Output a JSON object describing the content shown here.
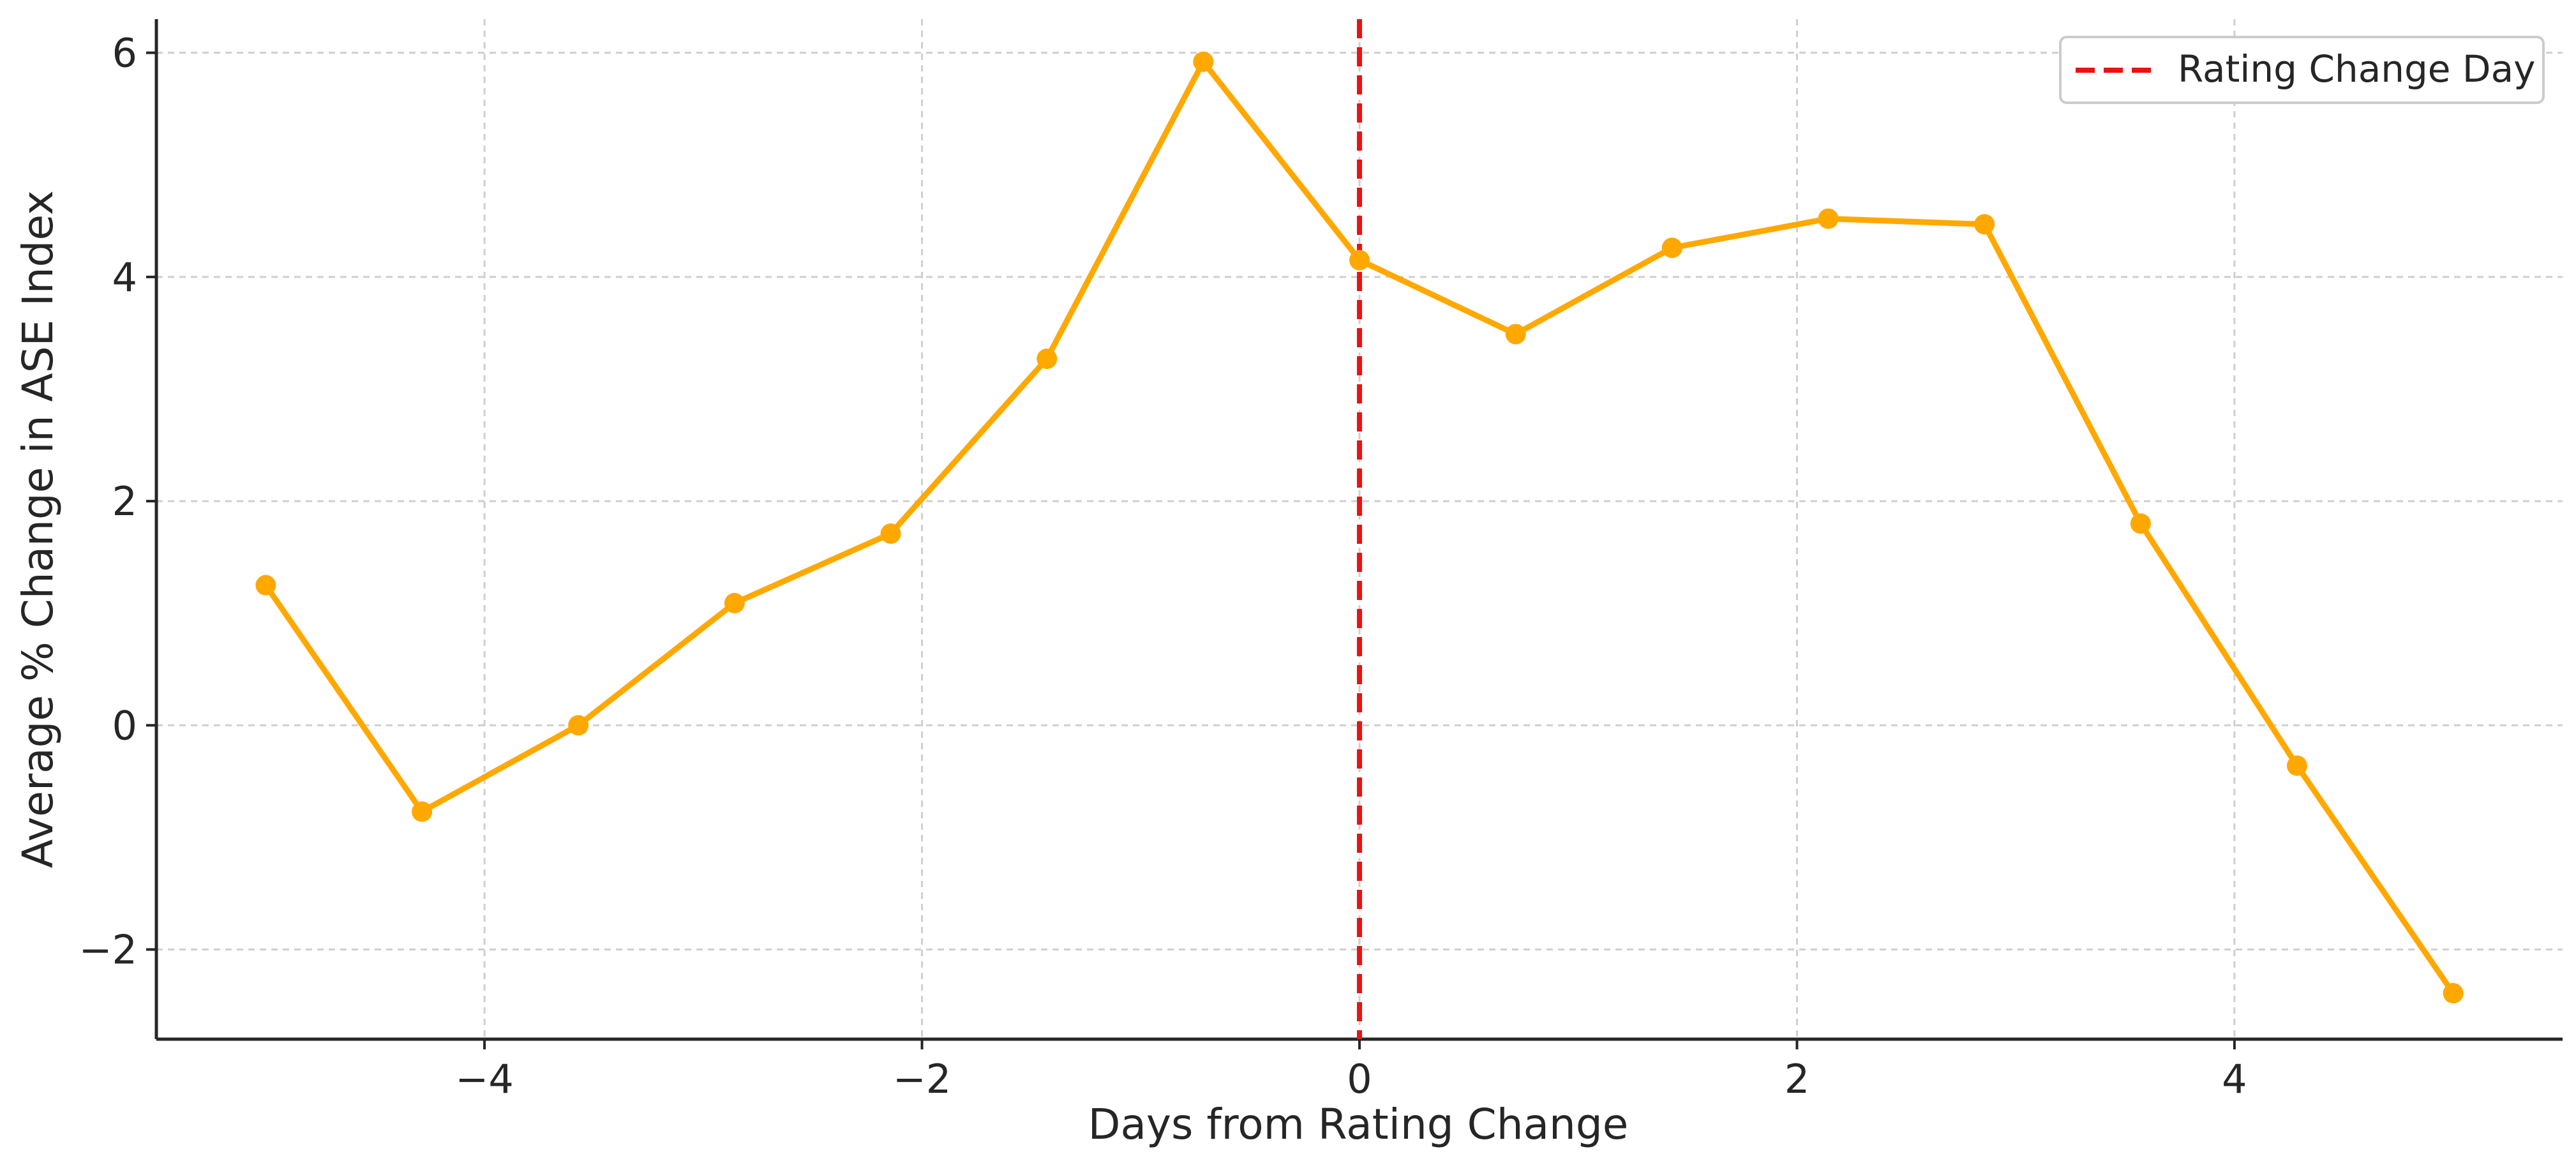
{
  "chart_data": {
    "type": "line",
    "title": "",
    "xlabel": "Days from Rating Change",
    "ylabel": "Average % Change in ASE Index",
    "xlim": [
      -5.5,
      5.5
    ],
    "ylim": [
      -2.8,
      6.3
    ],
    "xticks": [
      -4,
      -2,
      0,
      2,
      4
    ],
    "yticks": [
      -2,
      0,
      2,
      4,
      6
    ],
    "xtick_labels": [
      "−4",
      "−2",
      "0",
      "2",
      "4"
    ],
    "ytick_labels": [
      "−2",
      "0",
      "2",
      "4",
      "6"
    ],
    "grid": true,
    "legend_position": "top-right",
    "series": [
      {
        "color": "#FFA800",
        "marker": "circle",
        "x": [
          -5.0,
          -4.286,
          -3.571,
          -2.857,
          -2.143,
          -1.429,
          -0.714,
          0.0,
          0.714,
          1.429,
          2.143,
          2.857,
          3.571,
          4.286,
          5.0
        ],
        "y": [
          1.25,
          -0.77,
          0.0,
          1.09,
          1.71,
          3.27,
          5.92,
          4.15,
          3.49,
          4.26,
          4.52,
          4.47,
          1.8,
          -0.36,
          -2.39
        ]
      }
    ],
    "reference_lines": [
      {
        "name": "Rating Change Day",
        "orientation": "vertical",
        "x": 0,
        "color": "#EE1111",
        "style": "dashed"
      }
    ]
  }
}
